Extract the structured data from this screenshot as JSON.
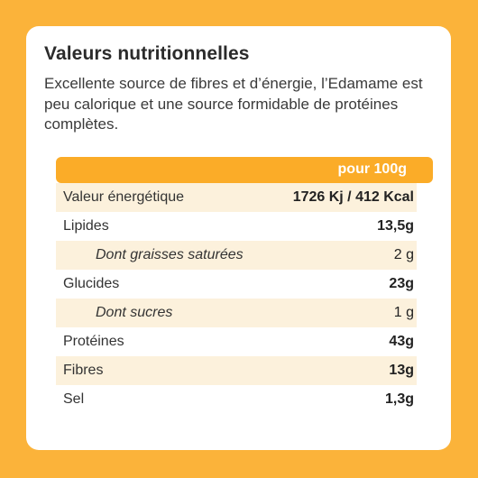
{
  "title": "Valeurs nutritionnelles",
  "intro": "Excellente source de fibres et d’énergie, l’Edamame est peu calorique et une source formidable de protéines complètes.",
  "table": {
    "column_header": "pour 100g",
    "rows": [
      {
        "label": "Valeur énergétique",
        "value": "1726 Kj / 412 Kcal"
      },
      {
        "label": "Lipides",
        "value": "13,5g"
      },
      {
        "label": "Dont graisses saturées",
        "value": "2 g"
      },
      {
        "label": "Glucides",
        "value": "23g"
      },
      {
        "label": "Dont sucres",
        "value": "1 g"
      },
      {
        "label": "Protéines",
        "value": "43g"
      },
      {
        "label": "Fibres",
        "value": "13g"
      },
      {
        "label": "Sel",
        "value": "1,3g"
      }
    ]
  },
  "colors": {
    "background": "#fbb33a",
    "header_bar": "#fbac28",
    "row_shade": "#fcf1dc"
  }
}
